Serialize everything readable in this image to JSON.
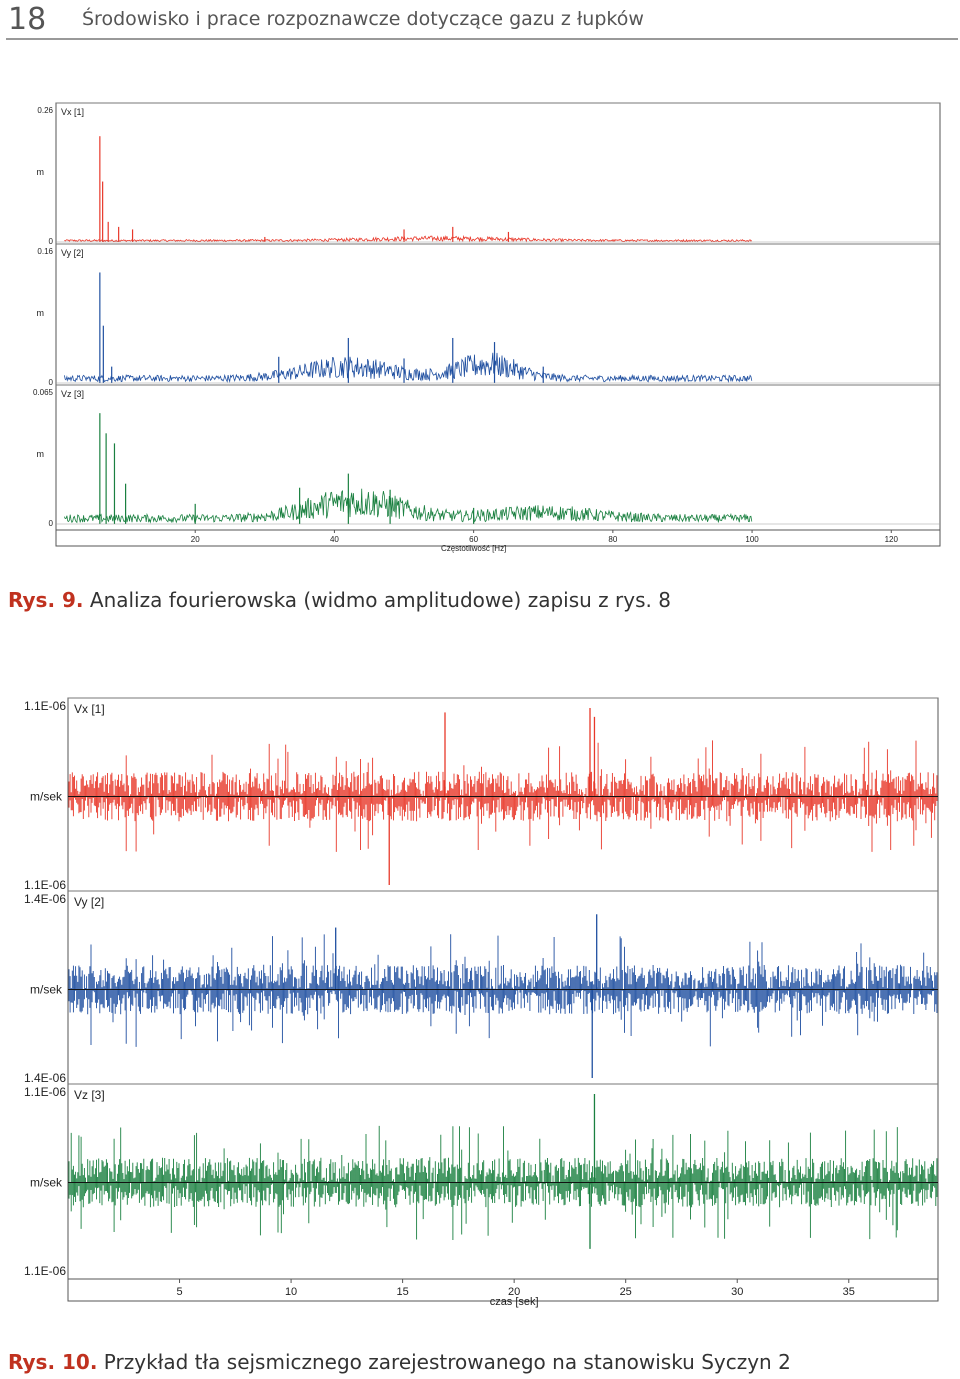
{
  "page": {
    "number": "18",
    "running_title": "Środowisko i prace rozpoznawcze dotyczące gazu z łupków"
  },
  "figure9": {
    "caption_label": "Rys. 9.",
    "caption_text": "Analiza fourierowska (widmo amplitudowe) zapisu z rys. 8"
  },
  "figure10": {
    "caption_label": "Rys. 10.",
    "caption_text": "Przykład tła sejsmicznego zarejestrowanego na stanowisku Syczyn 2"
  },
  "chart_data": [
    {
      "type": "line",
      "description_source": "Rys. 9",
      "xlabel": "Częstotliwość [Hz]",
      "xlim": [
        0,
        127
      ],
      "xticks": [
        20,
        40,
        60,
        80,
        100,
        120
      ],
      "series": [
        {
          "name": "Vx [1]",
          "unit": "m",
          "color": "#e8382a",
          "top_label": "0.26",
          "bottom_label": "0",
          "peaks": [
            {
              "x": 6.3,
              "y": 0.21
            },
            {
              "x": 6.7,
              "y": 0.12
            },
            {
              "x": 7.5,
              "y": 0.04
            },
            {
              "x": 9.0,
              "y": 0.03
            },
            {
              "x": 11.0,
              "y": 0.025
            },
            {
              "x": 30.0,
              "y": 0.01
            },
            {
              "x": 50.0,
              "y": 0.025
            },
            {
              "x": 57.0,
              "y": 0.03
            },
            {
              "x": 65.0,
              "y": 0.02
            }
          ]
        },
        {
          "name": "Vy [2]",
          "unit": "m",
          "color": "#1f4fa0",
          "top_label": "0.16",
          "bottom_label": "0",
          "peaks": [
            {
              "x": 6.3,
              "y": 0.135
            },
            {
              "x": 6.8,
              "y": 0.07
            },
            {
              "x": 8.0,
              "y": 0.02
            },
            {
              "x": 32.0,
              "y": 0.032
            },
            {
              "x": 42.0,
              "y": 0.055
            },
            {
              "x": 50.0,
              "y": 0.03
            },
            {
              "x": 57.0,
              "y": 0.055
            },
            {
              "x": 63.0,
              "y": 0.05
            },
            {
              "x": 70.0,
              "y": 0.02
            }
          ]
        },
        {
          "name": "Vz [3]",
          "unit": "m",
          "color": "#1a8040",
          "top_label": "0.065",
          "bottom_label": "0",
          "peaks": [
            {
              "x": 6.3,
              "y": 0.055
            },
            {
              "x": 7.2,
              "y": 0.045
            },
            {
              "x": 8.4,
              "y": 0.04
            },
            {
              "x": 10.0,
              "y": 0.02
            },
            {
              "x": 20.0,
              "y": 0.01
            },
            {
              "x": 35.0,
              "y": 0.018
            },
            {
              "x": 42.0,
              "y": 0.025
            },
            {
              "x": 48.0,
              "y": 0.017
            },
            {
              "x": 60.0,
              "y": 0.008
            }
          ]
        }
      ],
      "grid": false
    },
    {
      "type": "line",
      "description_source": "Rys. 10",
      "xlabel": "czas [sek]",
      "xlim": [
        0,
        39
      ],
      "xticks": [
        5,
        10,
        15,
        20,
        25,
        30,
        35
      ],
      "series": [
        {
          "name": "Vx [1]",
          "unit": "m/sek",
          "color": "#e8382a",
          "top_label": "1.1E-06",
          "bottom_label": "1.1E-06",
          "events": [
            {
              "x": 14.4,
              "y": -1.0
            },
            {
              "x": 16.9,
              "y": 0.95
            },
            {
              "x": 23.4,
              "y": 1.0
            },
            {
              "x": 23.6,
              "y": 0.9
            }
          ]
        },
        {
          "name": "Vy [2]",
          "unit": "m/sek",
          "color": "#1f4fa0",
          "top_label": "1.4E-06",
          "bottom_label": "1.4E-06",
          "events": [
            {
              "x": 12.0,
              "y": 0.7
            },
            {
              "x": 23.5,
              "y": -1.0
            },
            {
              "x": 23.7,
              "y": 0.85
            }
          ]
        },
        {
          "name": "Vz [3]",
          "unit": "m/sek",
          "color": "#1a8040",
          "top_label": "1.1E-06",
          "bottom_label": "1.1E-06",
          "events": [
            {
              "x": 23.6,
              "y": 1.0
            },
            {
              "x": 23.4,
              "y": -0.75
            }
          ]
        }
      ],
      "grid": false
    }
  ]
}
